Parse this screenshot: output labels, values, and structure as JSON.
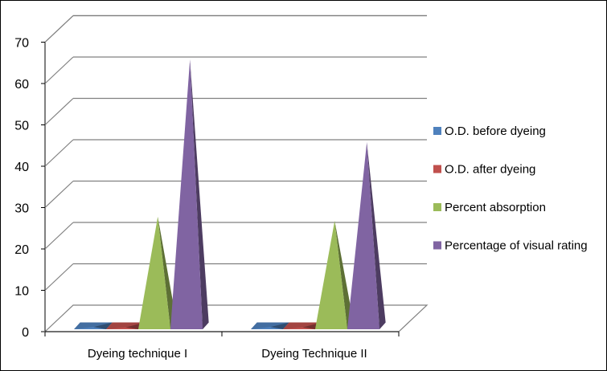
{
  "chart_data": {
    "type": "bar",
    "style": "3d-pyramid",
    "categories": [
      "Dyeing technique I",
      "Dyeing Technique II"
    ],
    "series": [
      {
        "name": "O.D. before dyeing",
        "values": [
          0.3,
          0.3
        ],
        "color": "#4F81BD"
      },
      {
        "name": "O.D. after dyeing",
        "values": [
          0.2,
          0.2
        ],
        "color": "#C0504D"
      },
      {
        "name": "Percent absorption",
        "values": [
          27,
          26
        ],
        "color": "#9BBB59"
      },
      {
        "name": "Percentage of visual rating",
        "values": [
          65,
          45
        ],
        "color": "#8064A2"
      }
    ],
    "yticks": [
      "0",
      "10",
      "20",
      "30",
      "40",
      "50",
      "60",
      "70"
    ],
    "ylim": [
      0,
      70
    ],
    "grid": true,
    "legend_position": "right"
  }
}
